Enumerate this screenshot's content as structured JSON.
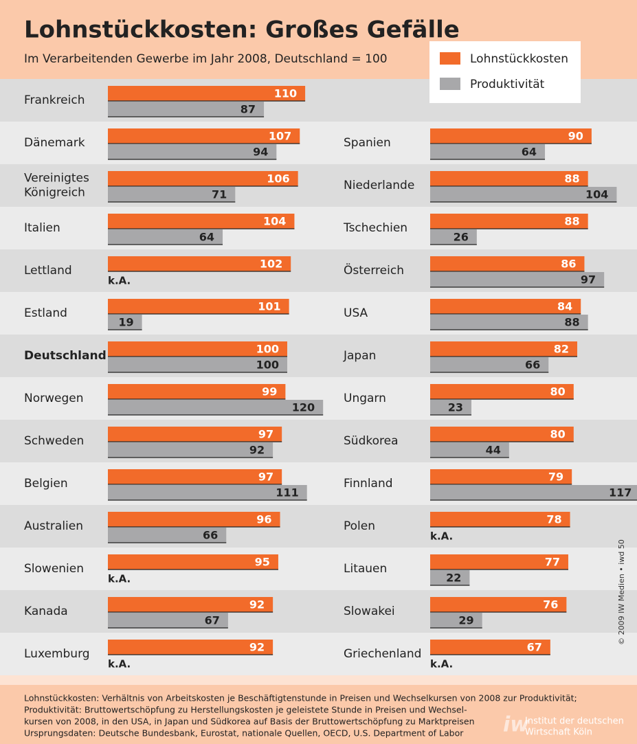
{
  "chart_data": {
    "type": "bar",
    "orientation": "horizontal",
    "title": "Lohnstückkosten: Großes Gefälle",
    "subtitle": "Im Verarbeitenden Gewerbe im Jahr 2008, Deutschland = 100",
    "categories": [
      "Frankreich",
      "Dänemark",
      "Vereinigtes Königreich",
      "Italien",
      "Lettland",
      "Estland",
      "Deutschland",
      "Norwegen",
      "Schweden",
      "Belgien",
      "Australien",
      "Slowenien",
      "Kanada",
      "Luxemburg",
      "Spanien",
      "Niederlande",
      "Tschechien",
      "Österreich",
      "USA",
      "Japan",
      "Ungarn",
      "Südkorea",
      "Finnland",
      "Polen",
      "Litauen",
      "Slowakei",
      "Griechenland"
    ],
    "series": [
      {
        "name": "Lohnstückkosten",
        "color": "#f26b2a",
        "values": [
          110,
          107,
          106,
          104,
          102,
          101,
          100,
          99,
          97,
          97,
          96,
          95,
          92,
          92,
          90,
          88,
          88,
          86,
          84,
          82,
          80,
          80,
          79,
          78,
          77,
          76,
          67
        ]
      },
      {
        "name": "Produktivität",
        "color": "#a8a8aa",
        "values": [
          87,
          94,
          71,
          64,
          null,
          19,
          100,
          120,
          92,
          111,
          66,
          null,
          67,
          null,
          64,
          104,
          26,
          97,
          88,
          66,
          23,
          44,
          117,
          null,
          22,
          29,
          null
        ],
        "value_labels": [
          null,
          null,
          null,
          null,
          "k.A.",
          null,
          null,
          null,
          null,
          null,
          null,
          "k.A.",
          null,
          "k.A.",
          null,
          null,
          null,
          null,
          null,
          null,
          null,
          null,
          null,
          "k.A.",
          null,
          null,
          "k.A."
        ]
      }
    ],
    "notes": [
      "Lohnstückkosten: Verhältnis von Arbeitskosten je Beschäftigtenstunde in Preisen und Wechselkursen von 2008 zur Produktivität;",
      "Produktivität: Bruttowertschöpfung zu Herstellungskosten je geleistete Stunde in Preisen und Wechsel-",
      "kursen von 2008, in den USA, in Japan und Südkorea auf Basis der Bruttowertschöpfung zu Marktpreisen",
      "Ursprungsdaten: Deutsche Bundesbank, Eurostat, nationale Quellen, OECD, U.S. Department of Labor"
    ],
    "copyright": "© 2009 IW Medien • iwd 50",
    "logo": "iw",
    "institute": [
      "Institut der deutschen",
      "Wirtschaft Köln"
    ]
  }
}
